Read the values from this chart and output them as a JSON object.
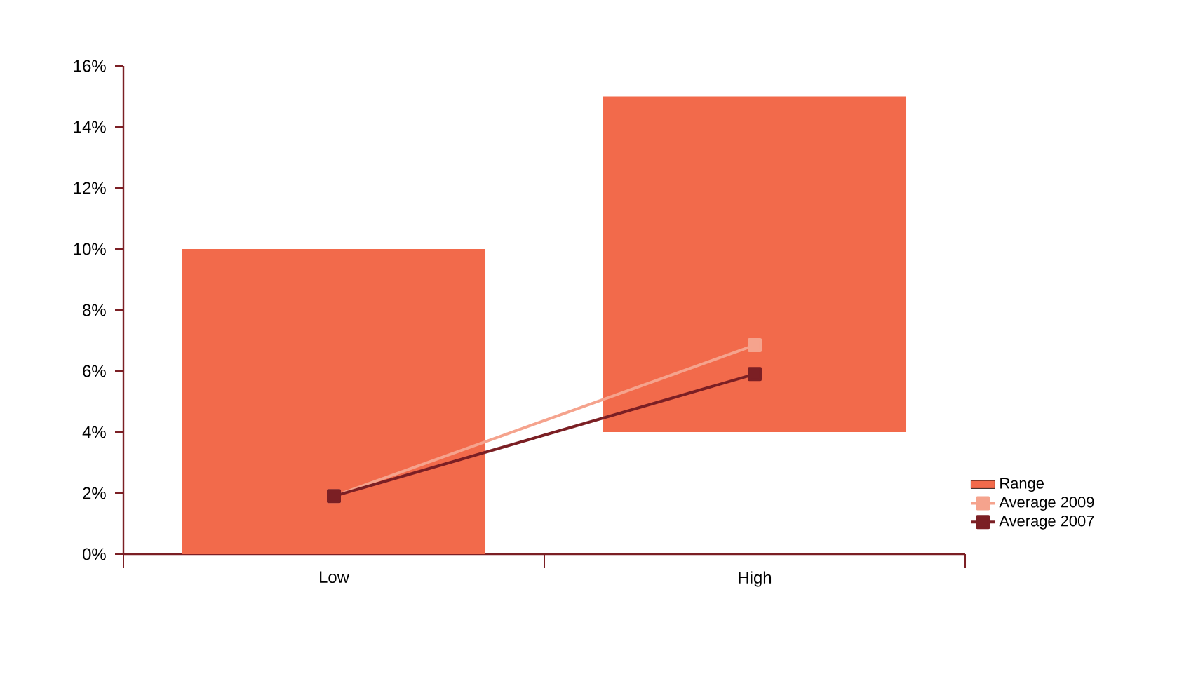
{
  "chart_data": {
    "type": "bar",
    "categories": [
      "Low",
      "High"
    ],
    "series": [
      {
        "name": "Range",
        "color": "#f26a4b",
        "values": [
          10,
          11
        ],
        "base": [
          0,
          4
        ]
      },
      {
        "name": "Average 2009",
        "type": "line",
        "color": "#f5a38d",
        "values": [
          1.9,
          6.85
        ]
      },
      {
        "name": "Average 2007",
        "type": "line",
        "color": "#7b1f24",
        "values": [
          1.9,
          5.9
        ]
      }
    ],
    "ylim": [
      0,
      16
    ],
    "yticks": [
      {
        "value": 0,
        "label": "0%"
      },
      {
        "value": 2,
        "label": "2%"
      },
      {
        "value": 4,
        "label": "4%"
      },
      {
        "value": 6,
        "label": "6%"
      },
      {
        "value": 8,
        "label": "8%"
      },
      {
        "value": 10,
        "label": "10%"
      },
      {
        "value": 12,
        "label": "12%"
      },
      {
        "value": 14,
        "label": "14%"
      },
      {
        "value": 16,
        "label": "16%"
      }
    ],
    "legend": "bottom right",
    "marker": "square",
    "grid": false
  }
}
